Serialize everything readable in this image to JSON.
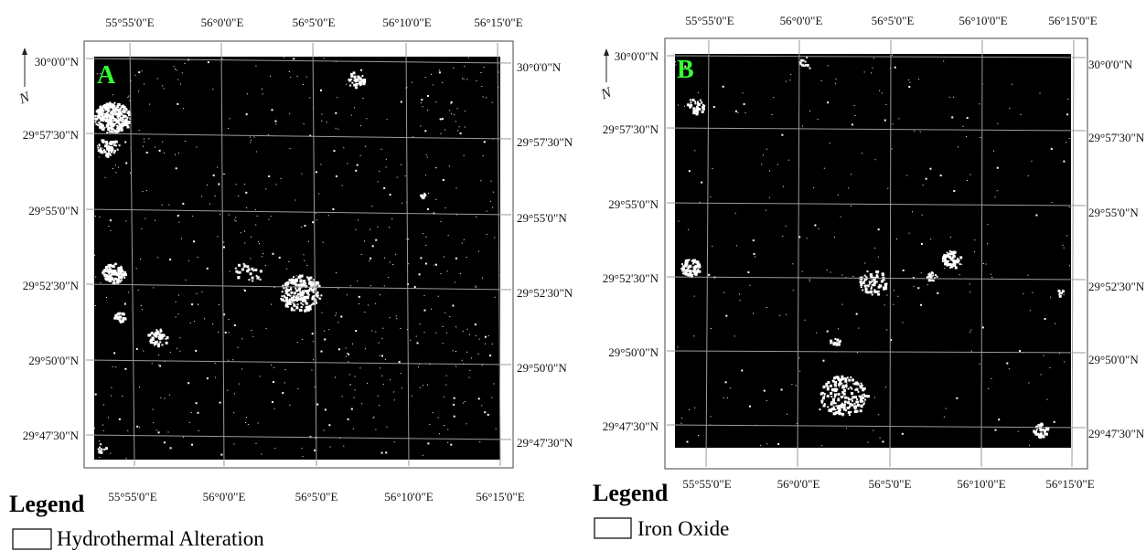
{
  "panels": [
    {
      "letter": "A",
      "north_symbol": "N",
      "top_lon_labels": [
        "55°55'0\"E",
        "56°0'0\"E",
        "56°5'0\"E",
        "56°10'0\"E",
        "56°15'0\"E"
      ],
      "bottom_lon_labels": [
        "55°55'0\"E",
        "56°0'0\"E",
        "56°5'0\"E",
        "56°10'0\"E",
        "56°15'0\"E"
      ],
      "left_lat_labels": [
        "30°0'0\"N",
        "29°57'30\"N",
        "29°55'0\"N",
        "29°52'30\"N",
        "29°50'0\"N",
        "29°47'30\"N"
      ],
      "right_lat_labels": [
        "30°0'0\"N",
        "29°57'30\"N",
        "29°55'0\"N",
        "29°52'30\"N",
        "29°50'0\"N",
        "29°47'30\"N"
      ],
      "legend_title": "Legend",
      "legend_item": "Hydrothermal Alteration"
    },
    {
      "letter": "B",
      "north_symbol": "N",
      "top_lon_labels": [
        "55°55'0\"E",
        "56°0'0\"E",
        "56°5'0\"E",
        "56°10'0\"E",
        "56°15'0\"E"
      ],
      "bottom_lon_labels": [
        "55°55'0\"E",
        "56°0'0\"E",
        "56°5'0\"E",
        "56°10'0\"E",
        "56°15'0\"E"
      ],
      "left_lat_labels": [
        "30°0'0\"N",
        "29°57'30\"N",
        "29°55'0\"N",
        "29°52'30\"N",
        "29°50'0\"N",
        "29°47'30\"N"
      ],
      "right_lat_labels": [
        "30°0'0\"N",
        "29°57'30\"N",
        "29°55'0\"N",
        "29°52'30\"N",
        "29°50'0\"N",
        "29°47'30\"N"
      ],
      "legend_title": "Legend",
      "legend_item": "Iron Oxide"
    }
  ],
  "colors": {
    "background": "#000000",
    "anomaly": "#ffffff",
    "grid": "#9a9a9a",
    "panel_letter": "#33ff33"
  }
}
